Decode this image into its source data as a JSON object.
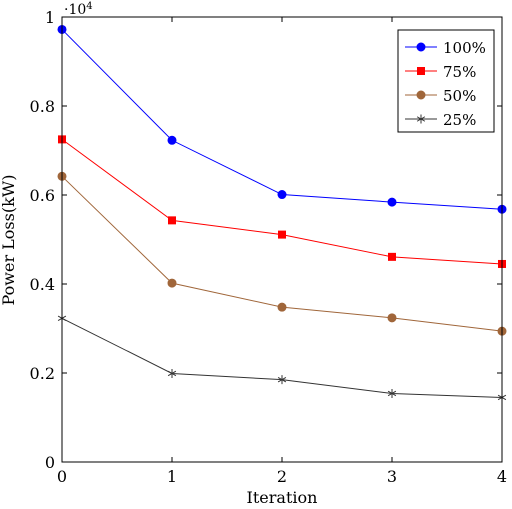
{
  "chart_data": {
    "type": "line",
    "title": "",
    "xlabel": "Iteration",
    "ylabel": "Power Loss(kW)",
    "y_multiplier": "·10",
    "y_multiplier_exp": "4",
    "x": [
      0,
      1,
      2,
      3,
      4
    ],
    "xlim": [
      0,
      4
    ],
    "ylim": [
      0,
      1
    ],
    "x_ticks": [
      "0",
      "1",
      "2",
      "3",
      "4"
    ],
    "y_ticks": [
      "0",
      "0.2",
      "0.4",
      "0.6",
      "0.8",
      "1"
    ],
    "grid": false,
    "legend_position": "top-right",
    "series": [
      {
        "name": "100%",
        "color": "#0000ff",
        "marker": "circle",
        "values": [
          0.972,
          0.723,
          0.601,
          0.584,
          0.568
        ]
      },
      {
        "name": "75%",
        "color": "#ff0000",
        "marker": "square",
        "values": [
          0.725,
          0.543,
          0.511,
          0.461,
          0.445
        ]
      },
      {
        "name": "50%",
        "color": "#a0663a",
        "marker": "circle",
        "values": [
          0.642,
          0.402,
          0.348,
          0.324,
          0.294
        ]
      },
      {
        "name": "25%",
        "color": "#333333",
        "marker": "star",
        "values": [
          0.323,
          0.199,
          0.185,
          0.154,
          0.145
        ]
      }
    ]
  }
}
